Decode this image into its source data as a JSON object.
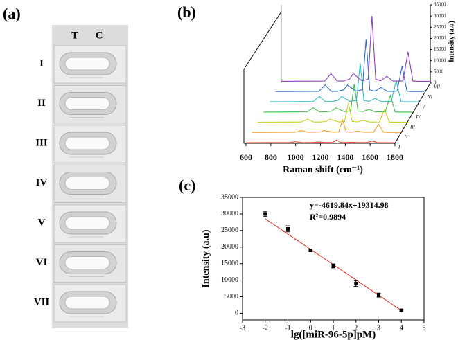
{
  "panels": {
    "a": {
      "label": "(a)",
      "columns": [
        "T",
        "C"
      ],
      "strips": [
        "I",
        "II",
        "III",
        "IV",
        "V",
        "VI",
        "VII"
      ]
    }
  },
  "chart_data": [
    {
      "type": "waterfall",
      "label": "(b)",
      "xlabel": "Raman shift (cm⁻¹)",
      "zlabel": "Intensity (a.u)",
      "xlim": [
        600,
        1800
      ],
      "xticks": [
        600,
        800,
        1000,
        1200,
        1400,
        1600,
        1800
      ],
      "zlim": [
        0,
        35000
      ],
      "zticks": [
        0,
        5000,
        10000,
        15000,
        20000,
        25000,
        30000,
        35000
      ],
      "x": [
        600,
        950,
        1000,
        1050,
        1100,
        1150,
        1180,
        1250,
        1300,
        1330,
        1360,
        1400,
        1450,
        1500,
        1550,
        1580,
        1620,
        1660,
        1700,
        1800
      ],
      "series": [
        {
          "name": "I",
          "color": "#e8452c",
          "values": [
            300,
            350,
            700,
            350,
            350,
            400,
            600,
            350,
            400,
            1500,
            400,
            350,
            500,
            350,
            350,
            400,
            1000,
            350,
            300,
            300
          ]
        },
        {
          "name": "II",
          "color": "#f0a020",
          "values": [
            400,
            450,
            1200,
            450,
            450,
            600,
            1200,
            500,
            600,
            6000,
            600,
            500,
            900,
            450,
            450,
            500,
            4000,
            450,
            400,
            400
          ]
        },
        {
          "name": "III",
          "color": "#c8d020",
          "values": [
            500,
            550,
            1800,
            550,
            550,
            800,
            1800,
            600,
            800,
            9000,
            800,
            600,
            1300,
            550,
            550,
            600,
            6000,
            550,
            500,
            500
          ]
        },
        {
          "name": "IV",
          "color": "#40c040",
          "values": [
            500,
            600,
            2400,
            600,
            600,
            1000,
            2400,
            700,
            1000,
            13000,
            1000,
            700,
            1700,
            600,
            600,
            700,
            8000,
            600,
            500,
            500
          ]
        },
        {
          "name": "V",
          "color": "#30c0c0",
          "values": [
            600,
            700,
            3000,
            700,
            700,
            1200,
            3000,
            800,
            1200,
            18000,
            1200,
            800,
            2100,
            700,
            700,
            800,
            10000,
            700,
            600,
            600
          ]
        },
        {
          "name": "VI",
          "color": "#3070c8",
          "values": [
            700,
            800,
            3600,
            800,
            800,
            1500,
            3600,
            900,
            1500,
            24000,
            1500,
            900,
            2500,
            800,
            800,
            900,
            12000,
            800,
            700,
            700
          ]
        },
        {
          "name": "VII",
          "color": "#8a40c0",
          "values": [
            800,
            900,
            4200,
            900,
            900,
            1800,
            4200,
            1000,
            1800,
            30000,
            1800,
            1000,
            3000,
            900,
            900,
            1000,
            14000,
            900,
            800,
            800
          ]
        }
      ]
    },
    {
      "type": "scatter",
      "label": "(c)",
      "xlabel": "lg([miR-96-5p]pM)",
      "ylabel": "Intensity (a.u)",
      "annotations": [
        "y=-4619.84x+19314.98",
        "R²=0.9894"
      ],
      "xlim": [
        -3,
        5
      ],
      "xticks": [
        -3,
        -2,
        -1,
        0,
        1,
        2,
        3,
        4,
        5
      ],
      "ylim": [
        -2000,
        35000
      ],
      "yticks": [
        0,
        5000,
        10000,
        15000,
        20000,
        25000,
        30000,
        35000
      ],
      "x": [
        -2,
        -1,
        0,
        1,
        2,
        3,
        4
      ],
      "values": [
        30000,
        25500,
        19000,
        14300,
        9000,
        5500,
        900
      ],
      "errors": [
        800,
        900,
        300,
        600,
        900,
        600,
        200
      ],
      "color": "#000000",
      "fit": {
        "x": [
          -2,
          4
        ],
        "values": [
          28554.66,
          835.62
        ],
        "color": "#e03020"
      }
    }
  ]
}
